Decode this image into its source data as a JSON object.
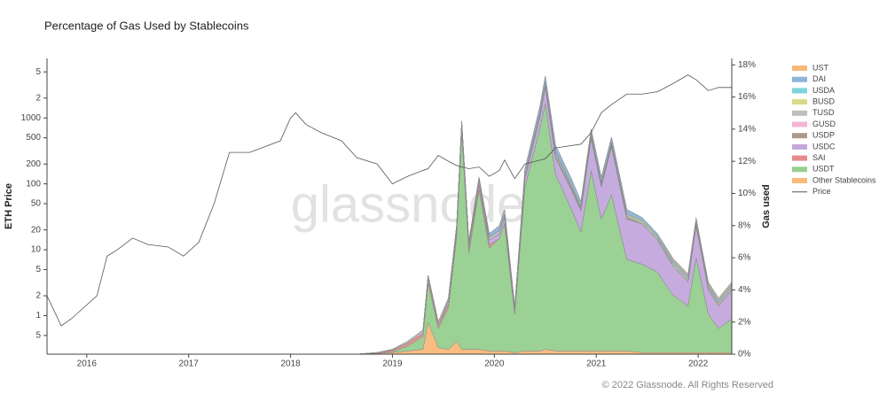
{
  "chart_data": {
    "type": "stacked-area-line",
    "title": "Percentage of Gas Used by Stablecoins",
    "ylabel": "ETH Price",
    "y2label": "Gas used",
    "watermark": "glassnode",
    "footer": "© 2022 Glassnode. All Rights Reserved",
    "y_log": true,
    "xlim": [
      2015.61,
      2022.33
    ],
    "xticks": [
      2016,
      2017,
      2018,
      2019,
      2020,
      2021,
      2022
    ],
    "ylim": [
      0.26,
      8000
    ],
    "yticks": [
      {
        "value": 0.5,
        "label": "5"
      },
      1,
      2,
      5,
      10,
      20,
      50,
      100,
      200,
      500,
      1000,
      {
        "value": 2000,
        "label": "2"
      },
      {
        "value": 5000,
        "label": "5"
      }
    ],
    "y2lim": [
      0,
      18.4
    ],
    "y2ticks": [
      {
        "value": 0,
        "label": "0%"
      },
      {
        "value": 2,
        "label": "2%"
      },
      {
        "value": 4,
        "label": "4%"
      },
      {
        "value": 6,
        "label": "6%"
      },
      {
        "value": 8,
        "label": "8%"
      },
      {
        "value": 10,
        "label": "10%"
      },
      {
        "value": 12,
        "label": "12%"
      },
      {
        "value": 14,
        "label": "14%"
      },
      {
        "value": 16,
        "label": "16%"
      },
      {
        "value": 18,
        "label": "18%"
      }
    ],
    "x": [
      2015.61,
      2015.75,
      2015.85,
      2016.1,
      2016.2,
      2016.3,
      2016.45,
      2016.6,
      2016.8,
      2016.95,
      2017.1,
      2017.25,
      2017.4,
      2017.6,
      2017.9,
      2018.0,
      2018.05,
      2018.15,
      2018.3,
      2018.5,
      2018.65,
      2018.85,
      2019.0,
      2019.15,
      2019.3,
      2019.35,
      2019.45,
      2019.55,
      2019.63,
      2019.68,
      2019.75,
      2019.85,
      2019.95,
      2020.05,
      2020.1,
      2020.2,
      2020.3,
      2020.45,
      2020.5,
      2020.6,
      2020.75,
      2020.85,
      2020.95,
      2021.05,
      2021.15,
      2021.3,
      2021.45,
      2021.6,
      2021.75,
      2021.9,
      2021.98,
      2022.1,
      2022.2,
      2022.33
    ],
    "series": [
      {
        "name": "UST",
        "color": "#f8b878",
        "axis": "y2",
        "values": [
          0,
          0,
          0,
          0,
          0,
          0,
          0,
          0,
          0,
          0,
          0,
          0,
          0,
          0,
          0,
          0,
          0,
          0,
          0,
          0,
          0,
          0,
          0,
          0,
          0,
          0,
          0,
          0,
          0,
          0,
          0,
          0,
          0,
          0,
          0,
          0,
          0,
          0,
          0,
          0,
          0,
          0,
          0,
          0,
          0,
          0,
          0,
          0,
          0.1,
          0.1,
          0.1,
          0.1,
          0.1,
          0.1
        ]
      },
      {
        "name": "DAI",
        "color": "#8db4d9",
        "axis": "y2",
        "values": [
          0,
          0,
          0,
          0,
          0,
          0,
          0,
          0,
          0,
          0,
          0,
          0,
          0,
          0,
          0,
          0,
          0,
          0,
          0,
          0,
          0,
          0,
          0,
          0,
          0,
          0,
          0,
          0,
          0,
          0,
          0,
          0,
          0.2,
          0.3,
          0.3,
          0.2,
          0.3,
          0.4,
          0.4,
          0.4,
          0.4,
          0.3,
          0.3,
          0.3,
          0.3,
          0.3,
          0.2,
          0.2,
          0.2,
          0.2,
          0.2,
          0.2,
          0.2,
          0.2
        ]
      },
      {
        "name": "USDA",
        "color": "#7fd3dc",
        "axis": "y2",
        "values": [
          0,
          0,
          0,
          0,
          0,
          0,
          0,
          0,
          0,
          0,
          0,
          0,
          0,
          0,
          0,
          0,
          0,
          0,
          0,
          0,
          0,
          0,
          0,
          0,
          0,
          0,
          0,
          0,
          0,
          0,
          0,
          0,
          0,
          0,
          0,
          0,
          0,
          0,
          0,
          0,
          0,
          0,
          0,
          0,
          0,
          0,
          0,
          0,
          0,
          0,
          0,
          0,
          0,
          0
        ]
      },
      {
        "name": "BUSD",
        "color": "#d7d98a",
        "axis": "y2",
        "values": [
          0,
          0,
          0,
          0,
          0,
          0,
          0,
          0,
          0,
          0,
          0,
          0,
          0,
          0,
          0,
          0,
          0,
          0,
          0,
          0,
          0,
          0,
          0,
          0,
          0,
          0,
          0,
          0,
          0,
          0,
          0,
          0,
          0,
          0,
          0,
          0,
          0,
          0,
          0,
          0.1,
          0.1,
          0.1,
          0.1,
          0.1,
          0.1,
          0.1,
          0.1,
          0.1,
          0.1,
          0.1,
          0.1,
          0.1,
          0.1,
          0.1
        ]
      },
      {
        "name": "TUSD",
        "color": "#bdbdbd",
        "axis": "y2",
        "values": [
          0,
          0,
          0,
          0,
          0,
          0,
          0,
          0,
          0,
          0,
          0,
          0,
          0,
          0,
          0,
          0,
          0,
          0,
          0,
          0,
          0,
          0,
          0.05,
          0.1,
          0.2,
          0.2,
          0.2,
          0.2,
          0.2,
          0.2,
          0.2,
          0.2,
          0.2,
          0.2,
          0.2,
          0.1,
          0.2,
          0.2,
          0.2,
          0.2,
          0.1,
          0.1,
          0.1,
          0.1,
          0.1,
          0.1,
          0.1,
          0.1,
          0.1,
          0.1,
          0.1,
          0.1,
          0.1,
          0.1
        ]
      },
      {
        "name": "GUSD",
        "color": "#f2b6d2",
        "axis": "y2",
        "values": [
          0,
          0,
          0,
          0,
          0,
          0,
          0,
          0,
          0,
          0,
          0,
          0,
          0,
          0,
          0,
          0,
          0,
          0,
          0,
          0,
          0,
          0,
          0,
          0,
          0,
          0,
          0,
          0,
          0,
          0,
          0,
          0,
          0,
          0,
          0,
          0,
          0,
          0,
          0,
          0,
          0,
          0,
          0,
          0,
          0,
          0,
          0,
          0,
          0,
          0,
          0,
          0,
          0,
          0
        ]
      },
      {
        "name": "USDP",
        "color": "#a89b8e",
        "axis": "y2",
        "values": [
          0,
          0,
          0,
          0,
          0,
          0,
          0,
          0,
          0,
          0,
          0,
          0,
          0,
          0,
          0,
          0,
          0,
          0,
          0,
          0,
          0,
          0,
          0,
          0,
          0,
          0,
          0,
          0,
          0,
          0,
          0,
          0,
          0,
          0,
          0,
          0,
          0.1,
          0.1,
          0.1,
          0.1,
          0.1,
          0.1,
          0.1,
          0.1,
          0.1,
          0.1,
          0,
          0,
          0,
          0,
          0,
          0,
          0,
          0
        ]
      },
      {
        "name": "USDC",
        "color": "#c3a8dc",
        "axis": "y2",
        "values": [
          0,
          0,
          0,
          0,
          0,
          0,
          0,
          0,
          0,
          0,
          0,
          0,
          0,
          0,
          0,
          0,
          0,
          0,
          0,
          0,
          0,
          0,
          0,
          0,
          0,
          0,
          0,
          0.2,
          0.2,
          0.2,
          0.2,
          0.3,
          0.3,
          0.3,
          0.4,
          0.2,
          0.5,
          0.7,
          1,
          1,
          1.2,
          1.3,
          2,
          2,
          3,
          2.5,
          2.5,
          2,
          1.8,
          1.5,
          2,
          1.5,
          1.4,
          1.8
        ]
      },
      {
        "name": "SAI",
        "color": "#e88a8a",
        "axis": "y2",
        "values": [
          0,
          0,
          0,
          0,
          0,
          0,
          0,
          0,
          0,
          0,
          0,
          0,
          0,
          0,
          0,
          0,
          0,
          0,
          0,
          0,
          0,
          0.05,
          0.1,
          0.2,
          0.2,
          0.3,
          0.2,
          0.2,
          0.3,
          0.3,
          0.3,
          0.3,
          0.2,
          0,
          0,
          0,
          0,
          0,
          0,
          0,
          0,
          0,
          0,
          0,
          0,
          0,
          0,
          0,
          0,
          0,
          0,
          0,
          0,
          0
        ]
      },
      {
        "name": "USDT",
        "color": "#96cf8f",
        "axis": "y2",
        "values": [
          0,
          0,
          0,
          0,
          0,
          0,
          0,
          0,
          0,
          0,
          0,
          0,
          0,
          0,
          0,
          0,
          0,
          0,
          0,
          0,
          0,
          0,
          0.05,
          0.3,
          0.8,
          2.4,
          1.2,
          2.6,
          6.5,
          13.5,
          6,
          9.9,
          6.4,
          7,
          7.9,
          2.4,
          10.2,
          13.9,
          15.3,
          11,
          8.9,
          7.4,
          11.2,
          8.2,
          9.7,
          5.7,
          5.5,
          5,
          3.6,
          2.9,
          5.9,
          2.4,
          1.5,
          2.1
        ]
      },
      {
        "name": "Other Stablecoins",
        "color": "#f9b97a",
        "axis": "y2",
        "values": [
          0,
          0,
          0,
          0,
          0,
          0,
          0,
          0,
          0,
          0,
          0,
          0,
          0,
          0,
          0,
          0,
          0,
          0,
          0,
          0,
          0,
          0.05,
          0.1,
          0.2,
          0.3,
          2,
          0.4,
          0.3,
          0.8,
          0.3,
          0.3,
          0.3,
          0.2,
          0.2,
          0.2,
          0.1,
          0.2,
          0.2,
          0.3,
          0.2,
          0.2,
          0.2,
          0.2,
          0.2,
          0.2,
          0.2,
          0.1,
          0.1,
          0.1,
          0.1,
          0.1,
          0.1,
          0.1,
          0.1
        ]
      },
      {
        "name": "Price",
        "color": "#555555",
        "axis": "y",
        "values": [
          2,
          0.7,
          0.9,
          2,
          8,
          10,
          15,
          12,
          11,
          8,
          13,
          50,
          300,
          300,
          450,
          1000,
          1200,
          800,
          600,
          450,
          250,
          200,
          100,
          130,
          160,
          170,
          270,
          220,
          190,
          180,
          170,
          180,
          130,
          160,
          230,
          120,
          200,
          230,
          240,
          350,
          380,
          400,
          600,
          1200,
          1600,
          2300,
          2300,
          2500,
          3300,
          4500,
          3800,
          2600,
          2900,
          2900
        ]
      }
    ]
  }
}
